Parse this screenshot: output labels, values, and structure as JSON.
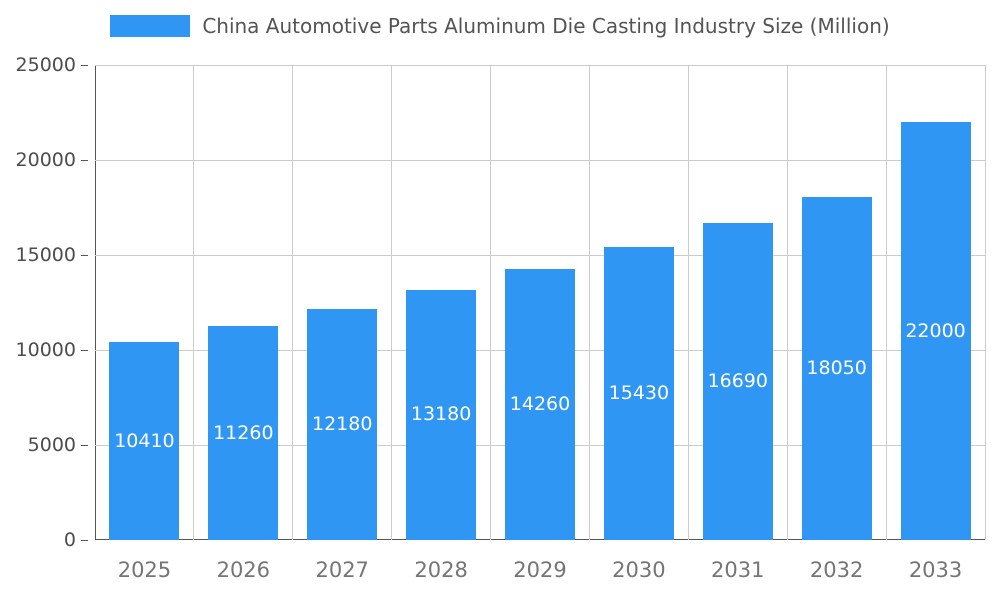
{
  "chart_data": {
    "type": "bar",
    "title": "China Automotive Parts Aluminum Die Casting Industry Size (Million)",
    "categories": [
      "2025",
      "2026",
      "2027",
      "2028",
      "2029",
      "2030",
      "2031",
      "2032",
      "2033"
    ],
    "values": [
      10410,
      11260,
      12180,
      13180,
      14260,
      15430,
      16690,
      18050,
      22000
    ],
    "value_labels": [
      "10410",
      "11260",
      "12180",
      "13180",
      "14260",
      "15430",
      "16690",
      "18050",
      "22000"
    ],
    "ylim": [
      0,
      25000
    ],
    "yticks": [
      0,
      5000,
      10000,
      15000,
      20000,
      25000
    ],
    "ytick_labels": [
      "0",
      "5000",
      "10000",
      "15000",
      "20000",
      "25000"
    ],
    "xlabel": "",
    "ylabel": "",
    "grid": true,
    "legend_position": "top",
    "bar_color": "#2f96f3",
    "value_label_color": "#ffffff"
  }
}
